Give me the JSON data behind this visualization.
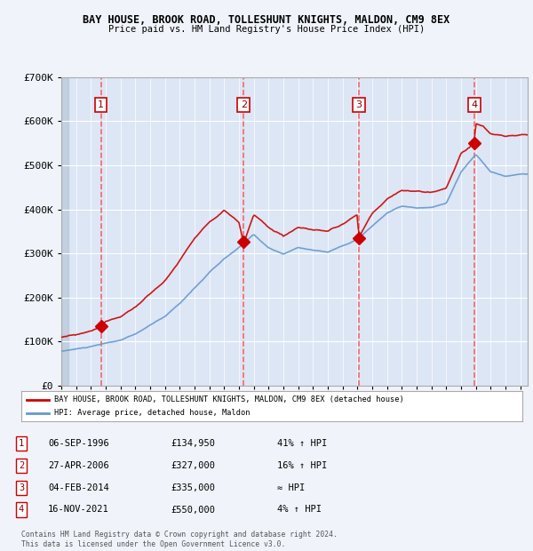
{
  "title1": "BAY HOUSE, BROOK ROAD, TOLLESHUNT KNIGHTS, MALDON, CM9 8EX",
  "title2": "Price paid vs. HM Land Registry's House Price Index (HPI)",
  "background_color": "#e8eef8",
  "plot_bg_color": "#dce6f5",
  "hatch_color": "#c8d4e8",
  "ylabel_color": "#222222",
  "sale_dates": [
    1996.67,
    2006.32,
    2014.09,
    2021.88
  ],
  "sale_prices": [
    134950,
    327000,
    335000,
    550000
  ],
  "sale_labels": [
    "1",
    "2",
    "3",
    "4"
  ],
  "legend_line1": "BAY HOUSE, BROOK ROAD, TOLLESHUNT KNIGHTS, MALDON, CM9 8EX (detached house)",
  "legend_line2": "HPI: Average price, detached house, Maldon",
  "table_rows": [
    [
      "1",
      "06-SEP-1996",
      "£134,950",
      "41% ↑ HPI"
    ],
    [
      "2",
      "27-APR-2006",
      "£327,000",
      "16% ↑ HPI"
    ],
    [
      "3",
      "04-FEB-2014",
      "£335,000",
      "≈ HPI"
    ],
    [
      "4",
      "16-NOV-2021",
      "£550,000",
      "4% ↑ HPI"
    ]
  ],
  "footer": "Contains HM Land Registry data © Crown copyright and database right 2024.\nThis data is licensed under the Open Government Licence v3.0.",
  "red_line_color": "#cc0000",
  "blue_line_color": "#6699cc",
  "marker_color": "#cc0000",
  "dashed_color": "#ff4444",
  "xmin": 1994,
  "xmax": 2025.5,
  "ymin": 0,
  "ymax": 700000,
  "yticks": [
    0,
    100000,
    200000,
    300000,
    400000,
    500000,
    600000,
    700000
  ],
  "ytick_labels": [
    "£0",
    "£100K",
    "£200K",
    "£300K",
    "£400K",
    "£500K",
    "£600K",
    "£700K"
  ]
}
